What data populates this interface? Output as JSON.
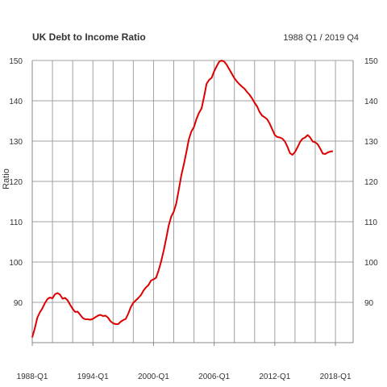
{
  "chart_data": {
    "type": "line",
    "title": "UK Debt to Income Ratio",
    "subtitle": "1988 Q1 / 2019 Q4",
    "xlabel": "",
    "ylabel": "Ratio",
    "x_range": [
      1988.0,
      2019.75
    ],
    "ylim": [
      80,
      150
    ],
    "y_ticks": [
      90,
      100,
      110,
      120,
      130,
      140,
      150
    ],
    "x_ticks": [
      {
        "x": 1988.0,
        "label": "1988-Q1"
      },
      {
        "x": 1994.0,
        "label": "1994-Q1"
      },
      {
        "x": 2000.0,
        "label": "2000-Q1"
      },
      {
        "x": 2006.0,
        "label": "2006-Q1"
      },
      {
        "x": 2012.0,
        "label": "2012-Q1"
      },
      {
        "x": 2018.0,
        "label": "2018-Q1"
      }
    ],
    "x_gridlines": [
      1990,
      1992,
      1994,
      1996,
      1998,
      2000,
      2002,
      2004,
      2006,
      2008,
      2010,
      2012,
      2014,
      2016,
      2018
    ],
    "grid": true,
    "series": [
      {
        "color": "#dd0000",
        "points": [
          [
            1988.0,
            81.3
          ],
          [
            1988.25,
            83.5
          ],
          [
            1988.5,
            86.2
          ],
          [
            1988.75,
            87.5
          ],
          [
            1989.0,
            88.5
          ],
          [
            1989.25,
            89.8
          ],
          [
            1989.5,
            90.8
          ],
          [
            1989.75,
            91.2
          ],
          [
            1990.0,
            91.0
          ],
          [
            1990.25,
            92.0
          ],
          [
            1990.5,
            92.3
          ],
          [
            1990.75,
            91.9
          ],
          [
            1991.0,
            90.9
          ],
          [
            1991.25,
            91.1
          ],
          [
            1991.5,
            90.5
          ],
          [
            1991.75,
            89.4
          ],
          [
            1992.0,
            88.4
          ],
          [
            1992.25,
            87.6
          ],
          [
            1992.5,
            87.7
          ],
          [
            1992.75,
            86.9
          ],
          [
            1993.0,
            86.1
          ],
          [
            1993.25,
            85.8
          ],
          [
            1993.5,
            85.8
          ],
          [
            1993.75,
            85.7
          ],
          [
            1994.0,
            85.9
          ],
          [
            1994.25,
            86.3
          ],
          [
            1994.5,
            86.7
          ],
          [
            1994.75,
            86.9
          ],
          [
            1995.0,
            86.6
          ],
          [
            1995.25,
            86.7
          ],
          [
            1995.5,
            86.2
          ],
          [
            1995.75,
            85.3
          ],
          [
            1996.0,
            84.8
          ],
          [
            1996.25,
            84.6
          ],
          [
            1996.5,
            84.6
          ],
          [
            1996.75,
            85.2
          ],
          [
            1997.0,
            85.6
          ],
          [
            1997.25,
            85.9
          ],
          [
            1997.5,
            87.2
          ],
          [
            1997.75,
            88.8
          ],
          [
            1998.0,
            89.9
          ],
          [
            1998.25,
            90.5
          ],
          [
            1998.5,
            91.1
          ],
          [
            1998.75,
            91.8
          ],
          [
            1999.0,
            92.9
          ],
          [
            1999.25,
            93.7
          ],
          [
            1999.5,
            94.3
          ],
          [
            1999.75,
            95.4
          ],
          [
            2000.0,
            95.7
          ],
          [
            2000.25,
            96.1
          ],
          [
            2000.5,
            97.9
          ],
          [
            2000.75,
            100.1
          ],
          [
            2001.0,
            102.8
          ],
          [
            2001.25,
            105.8
          ],
          [
            2001.5,
            109.0
          ],
          [
            2001.75,
            111.3
          ],
          [
            2002.0,
            112.5
          ],
          [
            2002.25,
            114.5
          ],
          [
            2002.5,
            118.0
          ],
          [
            2002.75,
            121.5
          ],
          [
            2003.0,
            124.2
          ],
          [
            2003.25,
            127.3
          ],
          [
            2003.5,
            130.5
          ],
          [
            2003.75,
            132.4
          ],
          [
            2004.0,
            133.5
          ],
          [
            2004.25,
            135.5
          ],
          [
            2004.5,
            137.0
          ],
          [
            2004.75,
            138.1
          ],
          [
            2005.0,
            141.0
          ],
          [
            2005.25,
            144.2
          ],
          [
            2005.5,
            145.2
          ],
          [
            2005.75,
            145.7
          ],
          [
            2006.0,
            147.3
          ],
          [
            2006.25,
            148.6
          ],
          [
            2006.5,
            149.7
          ],
          [
            2006.75,
            150.0
          ],
          [
            2007.0,
            149.7
          ],
          [
            2007.25,
            148.9
          ],
          [
            2007.5,
            147.8
          ],
          [
            2007.75,
            146.7
          ],
          [
            2008.0,
            145.6
          ],
          [
            2008.25,
            144.8
          ],
          [
            2008.5,
            144.1
          ],
          [
            2008.75,
            143.5
          ],
          [
            2009.0,
            143.0
          ],
          [
            2009.25,
            142.2
          ],
          [
            2009.5,
            141.5
          ],
          [
            2009.75,
            140.6
          ],
          [
            2010.0,
            139.5
          ],
          [
            2010.25,
            138.6
          ],
          [
            2010.5,
            137.2
          ],
          [
            2010.75,
            136.3
          ],
          [
            2011.0,
            135.9
          ],
          [
            2011.25,
            135.4
          ],
          [
            2011.5,
            134.3
          ],
          [
            2011.75,
            132.9
          ],
          [
            2012.0,
            131.5
          ],
          [
            2012.25,
            131.0
          ],
          [
            2012.5,
            130.9
          ],
          [
            2012.75,
            130.6
          ],
          [
            2013.0,
            129.9
          ],
          [
            2013.25,
            128.6
          ],
          [
            2013.5,
            127.0
          ],
          [
            2013.75,
            126.6
          ],
          [
            2014.0,
            127.3
          ],
          [
            2014.25,
            128.5
          ],
          [
            2014.5,
            129.8
          ],
          [
            2014.75,
            130.6
          ],
          [
            2015.0,
            130.9
          ],
          [
            2015.25,
            131.5
          ],
          [
            2015.5,
            130.9
          ],
          [
            2015.75,
            129.9
          ],
          [
            2016.0,
            129.7
          ],
          [
            2016.25,
            129.2
          ],
          [
            2016.5,
            128.1
          ],
          [
            2016.75,
            126.9
          ],
          [
            2017.0,
            126.8
          ],
          [
            2017.25,
            127.2
          ],
          [
            2017.5,
            127.4
          ],
          [
            2017.75,
            127.5
          ]
        ]
      }
    ]
  }
}
